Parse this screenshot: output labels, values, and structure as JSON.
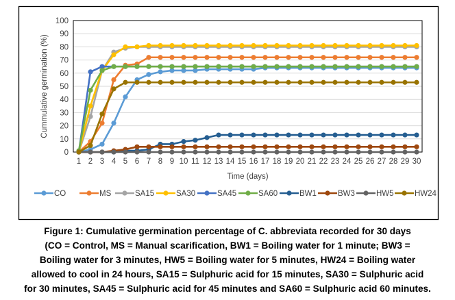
{
  "chart_data": {
    "type": "line",
    "title": "",
    "xlabel": "Time (days)",
    "ylabel": "Cummulative germination (%)",
    "ylim": [
      0,
      100
    ],
    "yticks": [
      0,
      10,
      20,
      30,
      40,
      50,
      60,
      70,
      80,
      90,
      100
    ],
    "x": [
      1,
      2,
      3,
      4,
      5,
      6,
      7,
      8,
      9,
      10,
      11,
      12,
      13,
      14,
      15,
      16,
      17,
      18,
      19,
      20,
      21,
      22,
      23,
      24,
      25,
      26,
      27,
      28,
      29,
      30
    ],
    "grid": true,
    "legend": "bottom",
    "series": [
      {
        "name": "CO",
        "color": "#5B9BD5",
        "values": [
          0,
          2,
          6,
          22,
          42,
          55,
          59,
          61,
          62,
          62,
          62,
          63,
          63,
          63,
          63,
          63,
          64,
          64,
          64,
          64,
          64,
          64,
          64,
          64,
          64,
          64,
          64,
          64,
          64,
          64
        ]
      },
      {
        "name": "MS",
        "color": "#ED7D31",
        "values": [
          0,
          8,
          22,
          55,
          66,
          67,
          72,
          72,
          72,
          72,
          72,
          72,
          72,
          72,
          72,
          72,
          72,
          72,
          72,
          72,
          72,
          72,
          72,
          72,
          72,
          72,
          72,
          72,
          72,
          72
        ]
      },
      {
        "name": "SA15",
        "color": "#A5A5A5",
        "values": [
          0,
          27,
          62,
          76,
          79,
          80,
          80,
          80,
          80,
          80,
          80,
          80,
          80,
          80,
          80,
          80,
          80,
          80,
          80,
          80,
          80,
          80,
          80,
          80,
          80,
          80,
          80,
          80,
          80,
          80
        ]
      },
      {
        "name": "SA30",
        "color": "#FFC000",
        "values": [
          0,
          35,
          62,
          74,
          80,
          80,
          81,
          81,
          81,
          81,
          81,
          81,
          81,
          81,
          81,
          81,
          81,
          81,
          81,
          81,
          81,
          81,
          81,
          81,
          81,
          81,
          81,
          81,
          81,
          81
        ]
      },
      {
        "name": "SA45",
        "color": "#4472C4",
        "values": [
          0,
          61,
          65,
          65,
          65,
          65,
          65,
          65,
          65,
          65,
          65,
          65,
          65,
          65,
          65,
          65,
          65,
          65,
          65,
          65,
          65,
          65,
          65,
          65,
          65,
          65,
          65,
          65,
          65,
          65
        ]
      },
      {
        "name": "SA60",
        "color": "#70AD47",
        "values": [
          1,
          47,
          62,
          65,
          65,
          65,
          65,
          65,
          65,
          65,
          65,
          65,
          65,
          65,
          65,
          65,
          65,
          65,
          65,
          65,
          65,
          65,
          65,
          65,
          65,
          65,
          65,
          65,
          65,
          65
        ]
      },
      {
        "name": "BW1",
        "color": "#255E91",
        "values": [
          0,
          0,
          0,
          0,
          1,
          1,
          2,
          6,
          6,
          8,
          9,
          11,
          13,
          13,
          13,
          13,
          13,
          13,
          13,
          13,
          13,
          13,
          13,
          13,
          13,
          13,
          13,
          13,
          13,
          13
        ]
      },
      {
        "name": "BW3",
        "color": "#9E480E",
        "values": [
          0,
          0,
          0,
          1,
          2,
          4,
          4,
          4,
          4,
          4,
          4,
          4,
          4,
          4,
          4,
          4,
          4,
          4,
          4,
          4,
          4,
          4,
          4,
          4,
          4,
          4,
          4,
          4,
          4,
          4
        ]
      },
      {
        "name": "HW5",
        "color": "#636363",
        "values": [
          0,
          0,
          0,
          0,
          0,
          0,
          0,
          0,
          0,
          0,
          0,
          0,
          0,
          0,
          0,
          0,
          0,
          0,
          0,
          0,
          0,
          0,
          0,
          0,
          0,
          0,
          0,
          0,
          0,
          0
        ]
      },
      {
        "name": "HW24",
        "color": "#997300",
        "values": [
          0,
          5,
          29,
          48,
          53,
          53,
          53,
          53,
          53,
          53,
          53,
          53,
          53,
          53,
          53,
          53,
          53,
          53,
          53,
          53,
          53,
          53,
          53,
          53,
          53,
          53,
          53,
          53,
          53,
          53
        ]
      }
    ]
  },
  "caption": [
    "Figure 1: Cumulative germination percentage of C. abbreviata recorded for 30 days",
    "(CO = Control, MS = Manual scarification,  BW1 = Boiling water for 1 minute; BW3 =",
    "Boiling water for 3 minutes, HW5 = Boiling water for 5 minutes, HW24 = Boiling water",
    "allowed to cool in 24 hours, SA15 = Sulphuric acid for 15 minutes, SA30 = Sulphuric acid",
    "for 30 minutes, SA45 = Sulphuric acid for 45 minutes and SA60 = Sulphuric acid 60 minutes."
  ]
}
